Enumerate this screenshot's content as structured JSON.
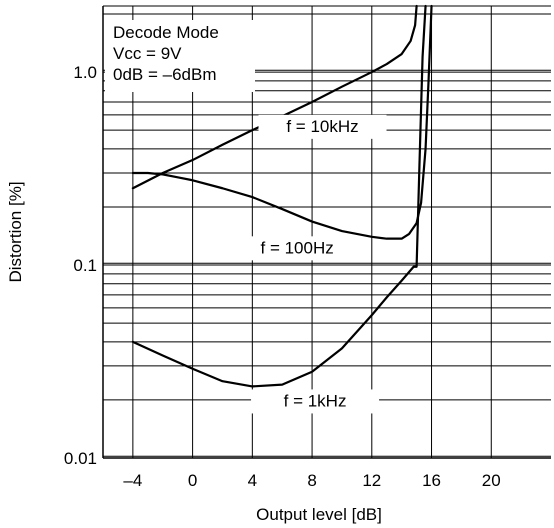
{
  "chart_data": {
    "type": "line",
    "xlabel": "Output level [dB]",
    "ylabel": "Distortion [%]",
    "xlim": [
      -6,
      24
    ],
    "ylim": [
      0.01,
      2.2
    ],
    "yscale": "log",
    "x_ticks": [
      -4,
      0,
      4,
      8,
      12,
      16,
      20
    ],
    "x_tick_labels": [
      "–4",
      "0",
      "4",
      "8",
      "12",
      "16",
      "20"
    ],
    "y_ticks": [
      0.01,
      0.1,
      1.0
    ],
    "y_tick_labels": [
      "0.01",
      "0.1",
      "1.0"
    ],
    "grid": true,
    "notes": [
      "Decode Mode",
      "Vcc = 9V",
      "0dB = –6dBm"
    ],
    "series": [
      {
        "name": "f = 10kHz",
        "x": [
          -4,
          -2,
          0,
          2,
          4,
          6,
          8,
          10,
          12,
          13,
          14,
          14.6,
          14.9,
          15.0
        ],
        "y": [
          0.25,
          0.3,
          0.35,
          0.42,
          0.5,
          0.59,
          0.7,
          0.84,
          1.0,
          1.1,
          1.24,
          1.45,
          1.75,
          2.2
        ]
      },
      {
        "name": "f = 100Hz",
        "x": [
          -4,
          -3,
          -2,
          -1,
          0,
          2,
          4,
          6,
          8,
          10,
          12,
          13,
          14,
          14.5,
          15,
          15.3,
          15.6,
          15.8,
          16.0
        ],
        "y": [
          0.3,
          0.3,
          0.295,
          0.285,
          0.275,
          0.25,
          0.225,
          0.195,
          0.168,
          0.15,
          0.14,
          0.137,
          0.137,
          0.145,
          0.165,
          0.21,
          0.4,
          0.9,
          2.2
        ]
      },
      {
        "name": "f = 1kHz",
        "x": [
          -4,
          -2,
          0,
          2,
          4,
          6,
          8,
          10,
          12,
          13,
          14,
          14.8,
          15.0,
          15.2,
          15.4,
          15.6
        ],
        "y": [
          0.04,
          0.034,
          0.029,
          0.025,
          0.0235,
          0.024,
          0.028,
          0.037,
          0.055,
          0.068,
          0.083,
          0.098,
          0.098,
          0.35,
          1.2,
          2.2
        ]
      }
    ]
  }
}
